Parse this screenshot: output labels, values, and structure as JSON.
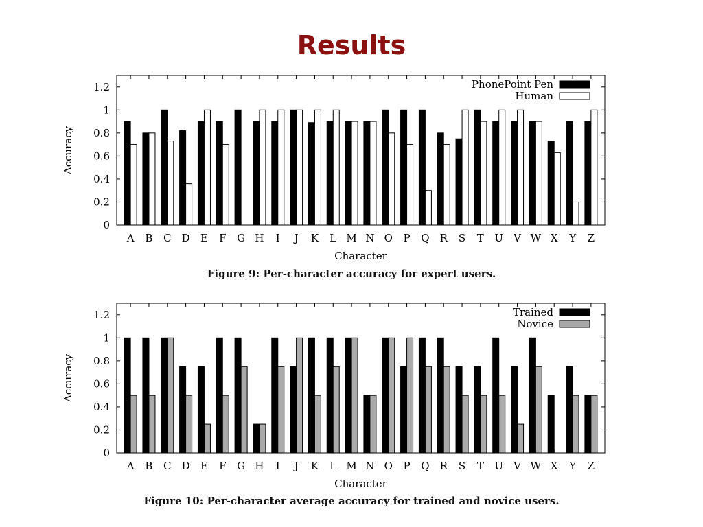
{
  "slide": {
    "title": "Results"
  },
  "chart_data": [
    {
      "type": "bar",
      "caption": "Figure 9: Per-character accuracy for expert users.",
      "xlabel": "Character",
      "ylabel": "Accuracy",
      "ylim": [
        0,
        1.3
      ],
      "yticks": [
        "0",
        "0.2",
        "0.4",
        "0.6",
        "0.8",
        "1",
        "1.2"
      ],
      "ytick_values": [
        0,
        0.2,
        0.4,
        0.6,
        0.8,
        1.0,
        1.2
      ],
      "legend_position": "top-right",
      "categories": [
        "A",
        "B",
        "C",
        "D",
        "E",
        "F",
        "G",
        "H",
        "I",
        "J",
        "K",
        "L",
        "M",
        "N",
        "O",
        "P",
        "Q",
        "R",
        "S",
        "T",
        "U",
        "V",
        "W",
        "X",
        "Y",
        "Z"
      ],
      "series": [
        {
          "name": "PhonePoint Pen",
          "color": "#000000",
          "values": [
            0.9,
            0.8,
            1.0,
            0.82,
            0.9,
            0.9,
            1.0,
            0.9,
            0.9,
            1.0,
            0.89,
            0.9,
            0.9,
            0.9,
            1.0,
            1.0,
            1.0,
            0.8,
            0.75,
            1.0,
            0.9,
            0.9,
            0.9,
            0.73,
            0.9,
            0.9
          ]
        },
        {
          "name": "Human",
          "color": "#ffffff",
          "values": [
            0.7,
            0.8,
            0.73,
            0.36,
            1.0,
            0.7,
            0.0,
            1.0,
            1.0,
            1.0,
            1.0,
            1.0,
            0.9,
            0.9,
            0.8,
            0.7,
            0.3,
            0.7,
            1.0,
            0.9,
            1.0,
            1.0,
            0.9,
            0.63,
            0.2,
            1.0
          ]
        }
      ]
    },
    {
      "type": "bar",
      "caption": "Figure 10: Per-character average accuracy for trained and novice users.",
      "xlabel": "Character",
      "ylabel": "Accuracy",
      "ylim": [
        0,
        1.3
      ],
      "yticks": [
        "0",
        "0.2",
        "0.4",
        "0.6",
        "0.8",
        "1",
        "1.2"
      ],
      "ytick_values": [
        0,
        0.2,
        0.4,
        0.6,
        0.8,
        1.0,
        1.2
      ],
      "legend_position": "top-right",
      "categories": [
        "A",
        "B",
        "C",
        "D",
        "E",
        "F",
        "G",
        "H",
        "I",
        "J",
        "K",
        "L",
        "M",
        "N",
        "O",
        "P",
        "Q",
        "R",
        "S",
        "T",
        "U",
        "V",
        "W",
        "X",
        "Y",
        "Z"
      ],
      "series": [
        {
          "name": "Trained",
          "color": "#000000",
          "values": [
            1.0,
            1.0,
            1.0,
            0.75,
            0.75,
            1.0,
            1.0,
            0.25,
            1.0,
            0.75,
            1.0,
            1.0,
            1.0,
            0.5,
            1.0,
            0.75,
            1.0,
            1.0,
            0.75,
            0.75,
            1.0,
            0.75,
            1.0,
            0.5,
            0.75,
            0.5
          ]
        },
        {
          "name": "Novice",
          "color": "#aaaaaa",
          "values": [
            0.5,
            0.5,
            1.0,
            0.5,
            0.25,
            0.5,
            0.75,
            0.25,
            0.75,
            1.0,
            0.5,
            0.75,
            1.0,
            0.5,
            1.0,
            1.0,
            0.75,
            0.75,
            0.5,
            0.5,
            0.5,
            0.25,
            0.75,
            0.0,
            0.5,
            0.5
          ]
        }
      ]
    }
  ]
}
